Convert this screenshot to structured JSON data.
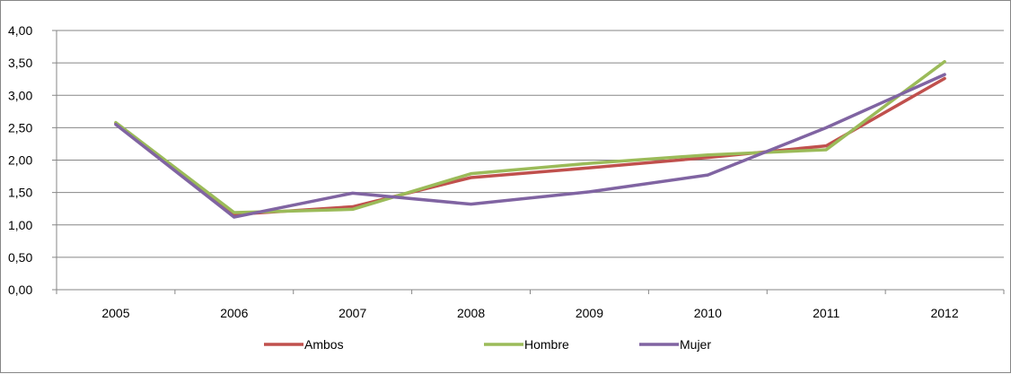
{
  "chart_data": {
    "type": "line",
    "title": "",
    "xlabel": "",
    "ylabel": "",
    "categories": [
      "2005",
      "2006",
      "2007",
      "2008",
      "2009",
      "2010",
      "2011",
      "2012"
    ],
    "ylim": [
      0,
      4
    ],
    "yticks": [
      "0,00",
      "0,50",
      "1,00",
      "1,50",
      "2,00",
      "2,50",
      "3,00",
      "3,50",
      "4,00"
    ],
    "grid": true,
    "legend_position": "bottom",
    "series": [
      {
        "name": "Ambos",
        "color": "#C0504D",
        "values": [
          2.57,
          1.16,
          1.28,
          1.73,
          1.88,
          2.04,
          2.22,
          3.26
        ]
      },
      {
        "name": "Hombre",
        "color": "#9BBB59",
        "values": [
          2.58,
          1.19,
          1.24,
          1.79,
          1.95,
          2.08,
          2.16,
          3.52
        ]
      },
      {
        "name": "Mujer",
        "color": "#8064A2",
        "values": [
          2.55,
          1.12,
          1.49,
          1.32,
          1.51,
          1.77,
          2.5,
          3.32
        ]
      }
    ]
  }
}
